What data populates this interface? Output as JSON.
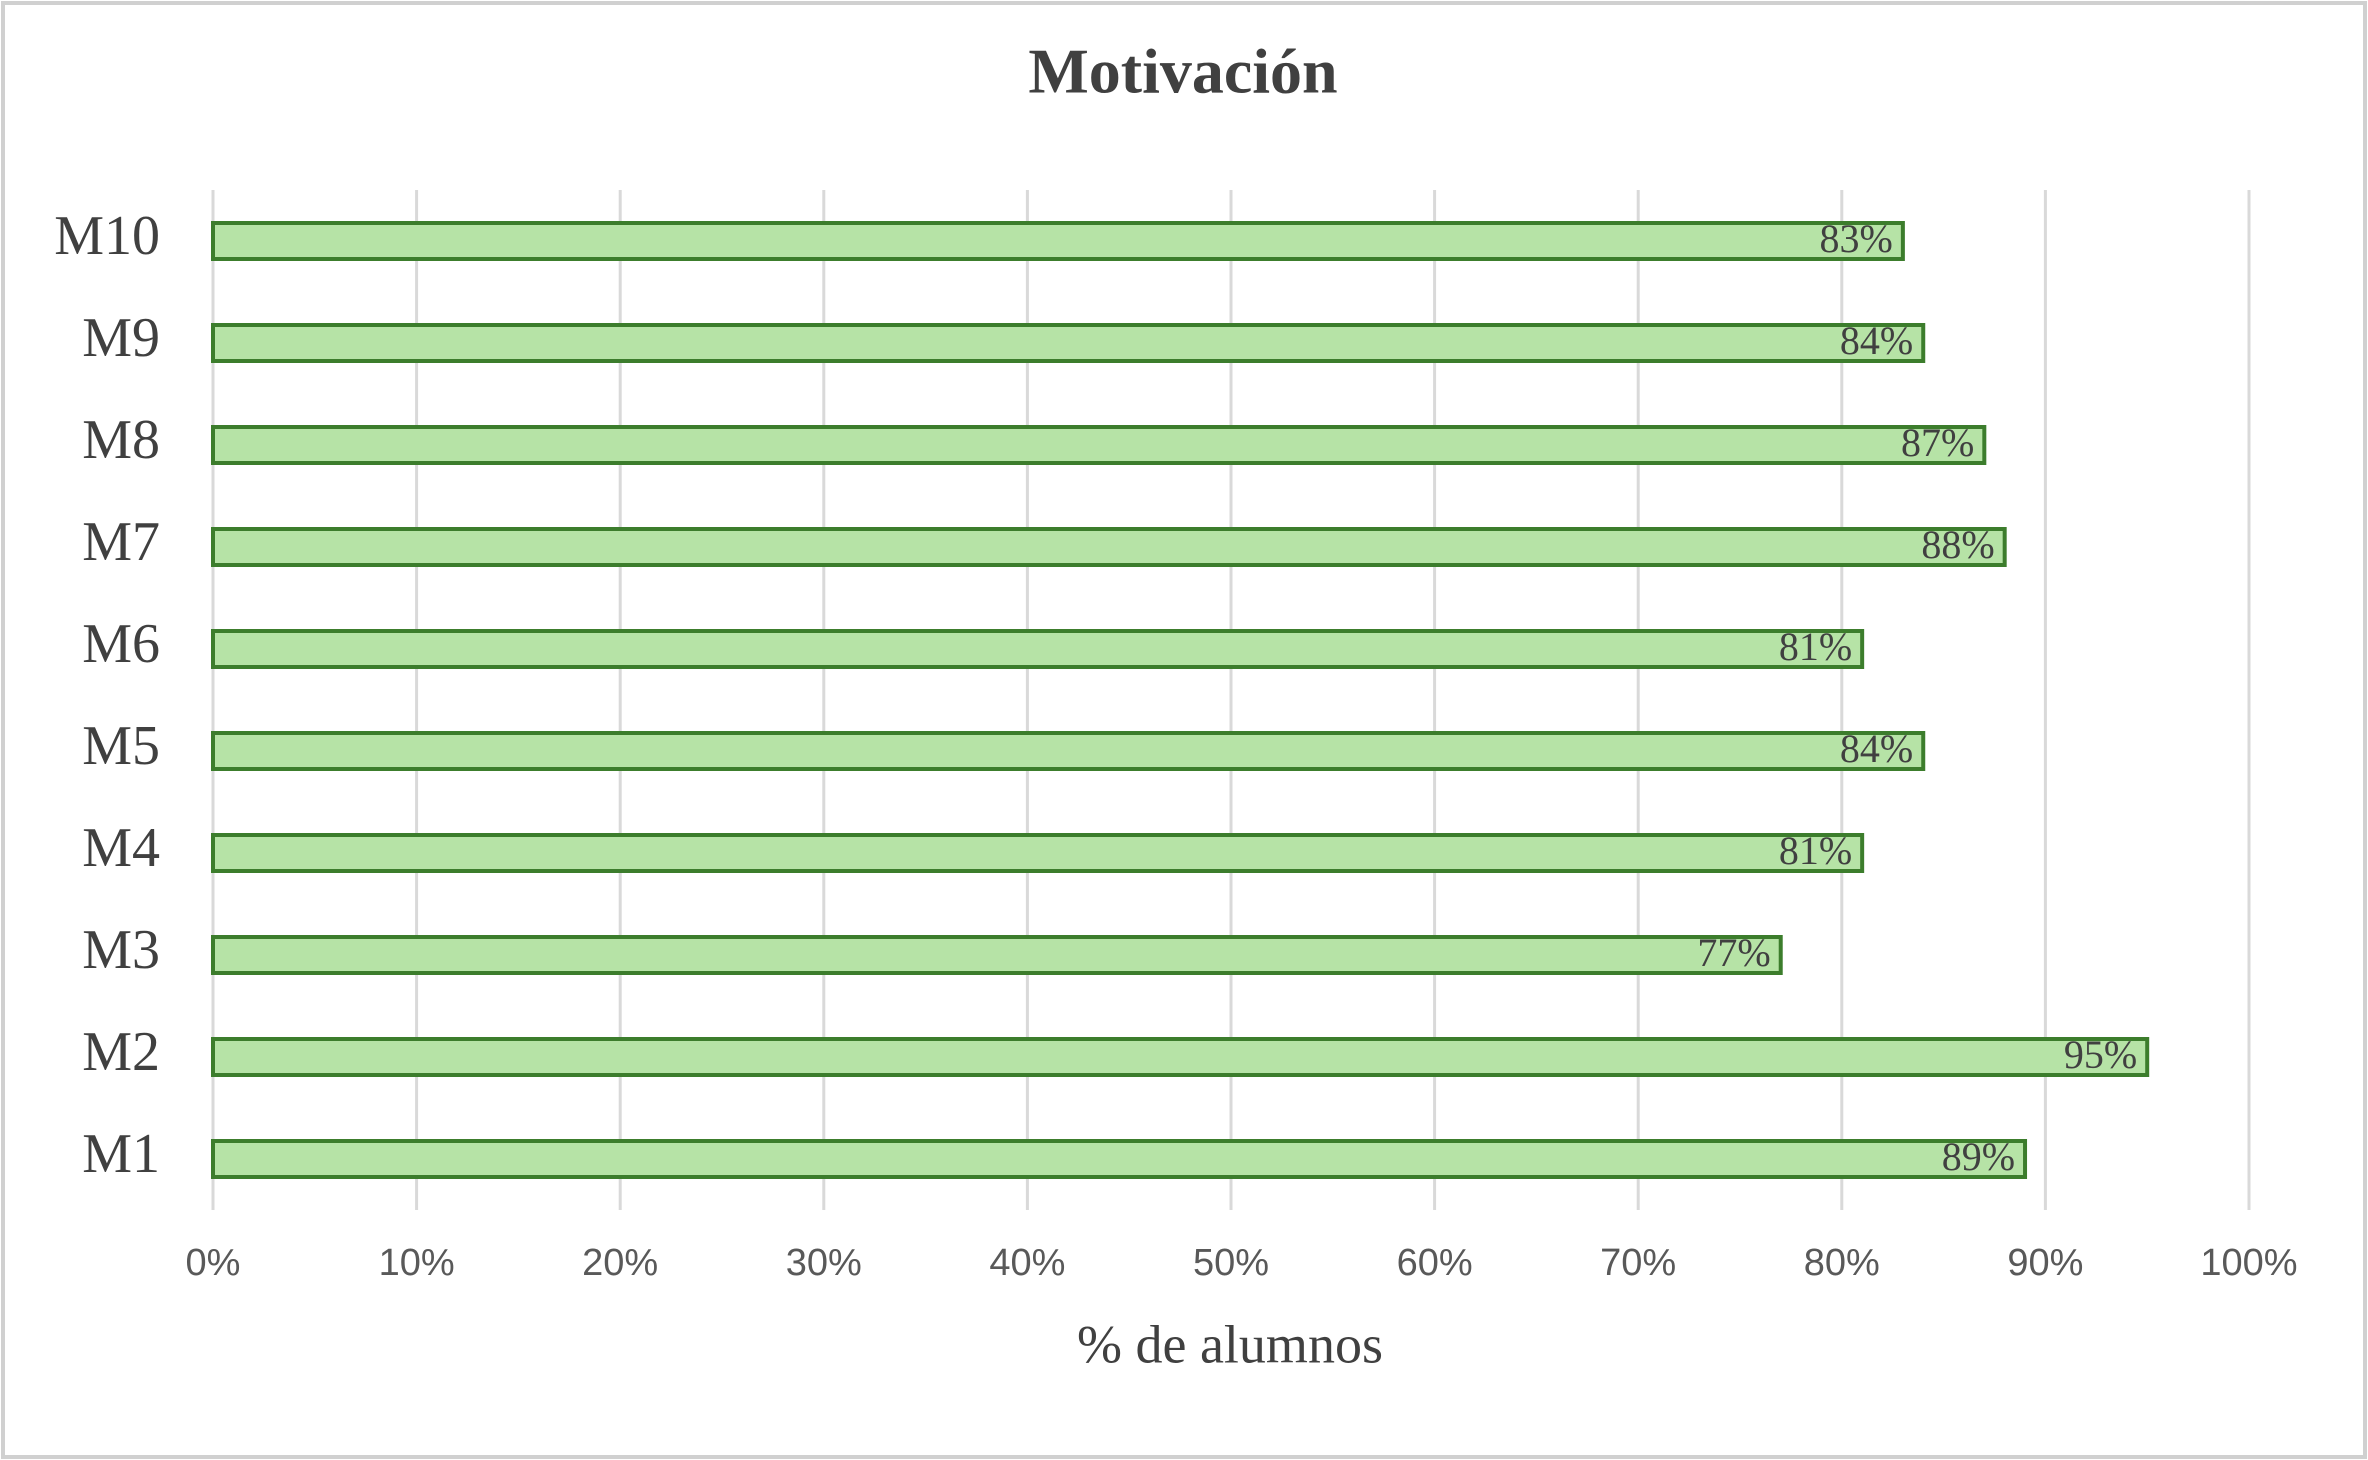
{
  "chart_data": {
    "type": "barh",
    "title": "Motivación",
    "xlabel": "% de alumnos",
    "categories": [
      "M1",
      "M2",
      "M3",
      "M4",
      "M5",
      "M6",
      "M7",
      "M8",
      "M9",
      "M10"
    ],
    "values": [
      89,
      95,
      77,
      81,
      84,
      81,
      88,
      87,
      84,
      83
    ],
    "value_labels": [
      "89%",
      "95%",
      "77%",
      "81%",
      "84%",
      "81%",
      "88%",
      "87%",
      "84%",
      "83%"
    ],
    "color": "#b6e3a6",
    "edgecolor": "#3c7d2c",
    "xlim": [
      0,
      100
    ],
    "xticks": [
      {
        "value": 0,
        "label": "0%"
      },
      {
        "value": 10,
        "label": "10%"
      },
      {
        "value": 20,
        "label": "20%"
      },
      {
        "value": 30,
        "label": "30%"
      },
      {
        "value": 40,
        "label": "40%"
      },
      {
        "value": 50,
        "label": "50%"
      },
      {
        "value": 60,
        "label": "60%"
      },
      {
        "value": 70,
        "label": "70%"
      },
      {
        "value": 80,
        "label": "80%"
      },
      {
        "value": 90,
        "label": "90%"
      },
      {
        "value": 100,
        "label": "100%"
      }
    ],
    "grid": true
  }
}
